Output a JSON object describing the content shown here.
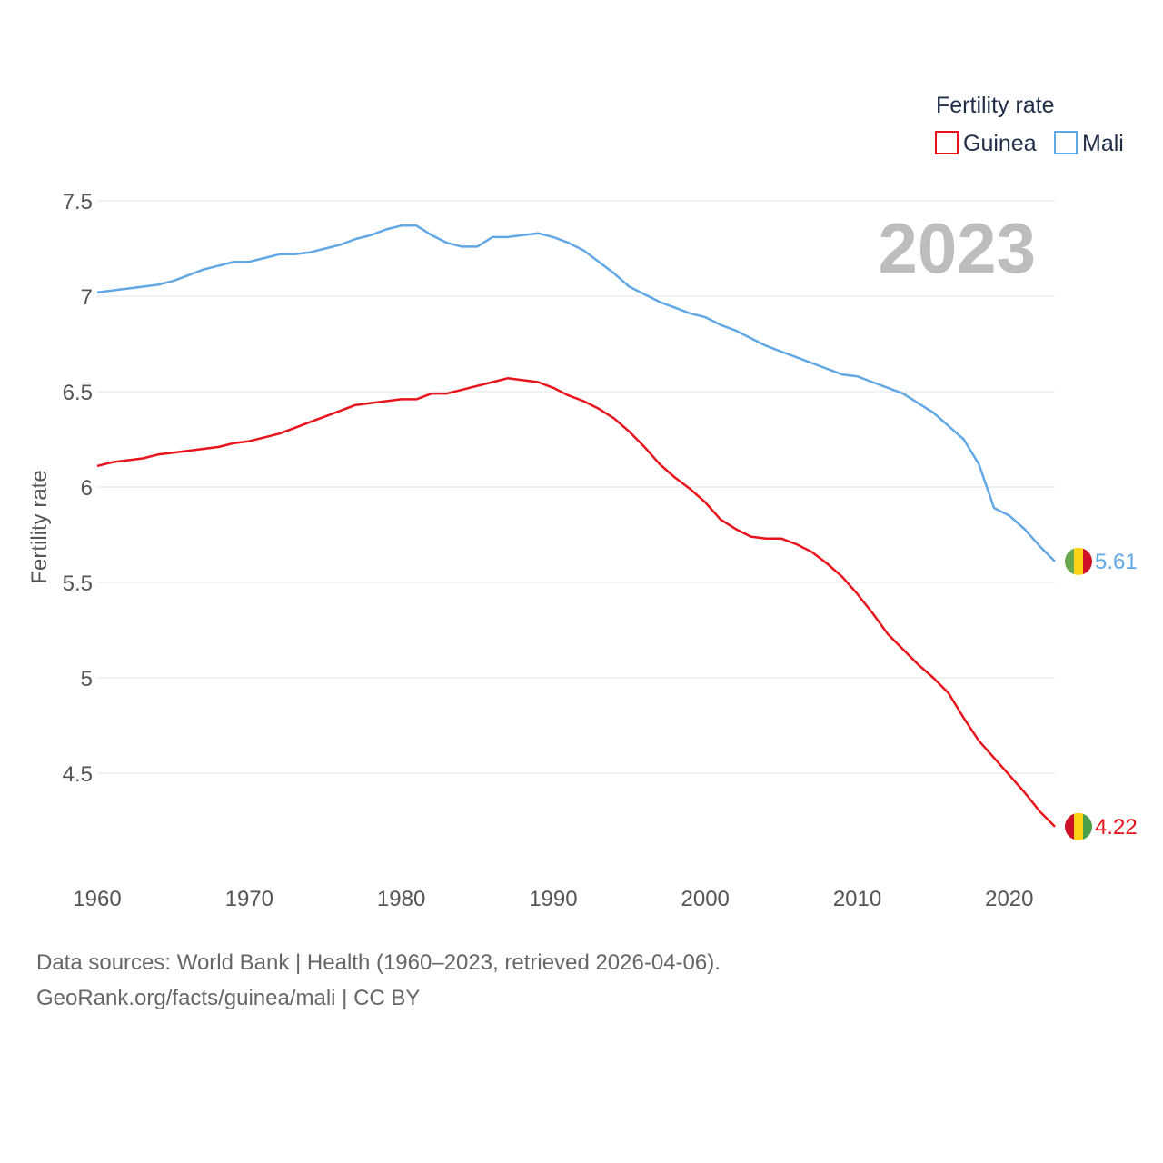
{
  "legend": {
    "title": "Fertility rate"
  },
  "year_stamp": "2023",
  "footer": {
    "line1": "Data sources: World Bank | Health (1960–2023, retrieved 2026-04-06).",
    "line2": "GeoRank.org/facts/guinea/mali | CC BY"
  },
  "colors": {
    "guinea": "#e8141c",
    "mali": "#62a8e5",
    "grid": "#e6e6e6"
  },
  "chart_data": {
    "type": "line",
    "title": "",
    "xlabel": "",
    "ylabel": "Fertility rate",
    "xlim": [
      1960,
      2023
    ],
    "ylim": [
      4.2,
      7.5
    ],
    "x_ticks": [
      {
        "value": 1960,
        "label": "1960"
      },
      {
        "value": 1970,
        "label": "1970"
      },
      {
        "value": 1980,
        "label": "1980"
      },
      {
        "value": 1990,
        "label": "1990"
      },
      {
        "value": 2000,
        "label": "2000"
      },
      {
        "value": 2010,
        "label": "2010"
      },
      {
        "value": 2020,
        "label": "2020"
      }
    ],
    "y_ticks": [
      {
        "value": 4.5,
        "label": "4.5"
      },
      {
        "value": 5,
        "label": "5"
      },
      {
        "value": 5.5,
        "label": "5.5"
      },
      {
        "value": 6,
        "label": "6"
      },
      {
        "value": 6.5,
        "label": "6.5"
      },
      {
        "value": 7,
        "label": "7"
      },
      {
        "value": 7.5,
        "label": "7.5"
      }
    ],
    "x": [
      1960,
      1961,
      1962,
      1963,
      1964,
      1965,
      1966,
      1967,
      1968,
      1969,
      1970,
      1971,
      1972,
      1973,
      1974,
      1975,
      1976,
      1977,
      1978,
      1979,
      1980,
      1981,
      1982,
      1983,
      1984,
      1985,
      1986,
      1987,
      1988,
      1989,
      1990,
      1991,
      1992,
      1993,
      1994,
      1995,
      1996,
      1997,
      1998,
      1999,
      2000,
      2001,
      2002,
      2003,
      2004,
      2005,
      2006,
      2007,
      2008,
      2009,
      2010,
      2011,
      2012,
      2013,
      2014,
      2015,
      2016,
      2017,
      2018,
      2019,
      2020,
      2021,
      2022,
      2023
    ],
    "series": [
      {
        "name": "Guinea",
        "color": "#e8141c",
        "end_label": "4.22",
        "values": [
          6.11,
          6.13,
          6.14,
          6.15,
          6.17,
          6.18,
          6.19,
          6.2,
          6.21,
          6.23,
          6.24,
          6.26,
          6.28,
          6.31,
          6.34,
          6.37,
          6.4,
          6.43,
          6.44,
          6.45,
          6.46,
          6.46,
          6.49,
          6.49,
          6.51,
          6.53,
          6.55,
          6.57,
          6.56,
          6.55,
          6.52,
          6.48,
          6.45,
          6.41,
          6.36,
          6.29,
          6.21,
          6.12,
          6.05,
          5.99,
          5.92,
          5.83,
          5.78,
          5.74,
          5.73,
          5.73,
          5.7,
          5.66,
          5.6,
          5.53,
          5.44,
          5.34,
          5.23,
          5.15,
          5.07,
          5.0,
          4.92,
          4.79,
          4.67,
          4.58,
          4.49,
          4.4,
          4.3,
          4.22
        ]
      },
      {
        "name": "Mali",
        "color": "#62a8e5",
        "end_label": "5.61",
        "values": [
          7.02,
          7.03,
          7.04,
          7.05,
          7.06,
          7.08,
          7.11,
          7.14,
          7.16,
          7.18,
          7.18,
          7.2,
          7.22,
          7.22,
          7.23,
          7.25,
          7.27,
          7.3,
          7.32,
          7.35,
          7.37,
          7.37,
          7.32,
          7.28,
          7.26,
          7.26,
          7.31,
          7.31,
          7.32,
          7.33,
          7.31,
          7.28,
          7.24,
          7.18,
          7.12,
          7.05,
          7.01,
          6.97,
          6.94,
          6.91,
          6.89,
          6.85,
          6.82,
          6.78,
          6.74,
          6.71,
          6.68,
          6.65,
          6.62,
          6.59,
          6.58,
          6.55,
          6.52,
          6.49,
          6.44,
          6.39,
          6.32,
          6.25,
          6.12,
          5.89,
          5.85,
          5.78,
          5.69,
          5.61
        ]
      }
    ]
  }
}
